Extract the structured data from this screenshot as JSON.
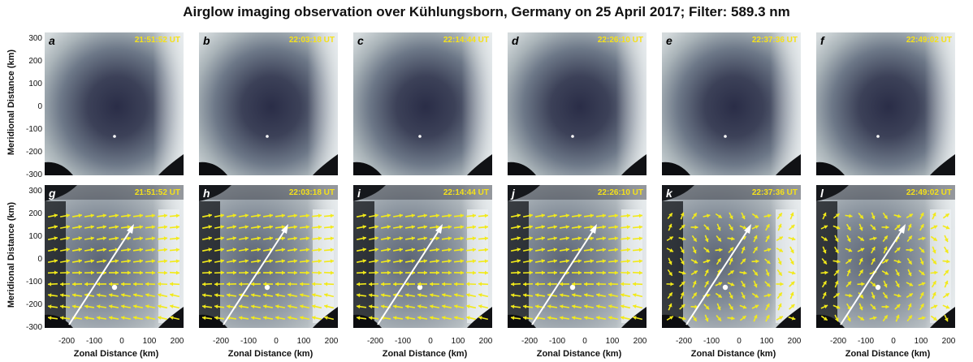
{
  "figure": {
    "title": "Airglow imaging observation over Kühlungsborn, Germany on 25 April 2017; Filter: 589.3 nm",
    "ylabel": "Meridional Distance (km)",
    "xlabel": "Zonal Distance (km)",
    "yticks": [
      "300",
      "200",
      "100",
      "0",
      "-100",
      "-200",
      "-300"
    ],
    "xticks": [
      "-200",
      "-100",
      "0",
      "100",
      "200"
    ]
  },
  "colors": {
    "label_time": "#f5e11a",
    "vector": "#f2ea1a",
    "propagation_arrow": "#ffffff",
    "sky_dark": "#2b2f4a",
    "sky_bright": "#dde3e6"
  },
  "panels_top": [
    {
      "letter": "a",
      "time": "21:51:52 UT"
    },
    {
      "letter": "b",
      "time": "22:03:18 UT"
    },
    {
      "letter": "c",
      "time": "22:14:44 UT"
    },
    {
      "letter": "d",
      "time": "22:26:10 UT"
    },
    {
      "letter": "e",
      "time": "22:37:36 UT"
    },
    {
      "letter": "f",
      "time": "22:49:02 UT"
    }
  ],
  "panels_bottom": [
    {
      "letter": "g",
      "time": "21:51:52 UT"
    },
    {
      "letter": "h",
      "time": "22:03:18 UT"
    },
    {
      "letter": "i",
      "time": "22:14:44 UT"
    },
    {
      "letter": "j",
      "time": "22:26:10 UT"
    },
    {
      "letter": "k",
      "time": "22:37:36 UT"
    },
    {
      "letter": "l",
      "time": "22:49:02 UT"
    }
  ]
}
